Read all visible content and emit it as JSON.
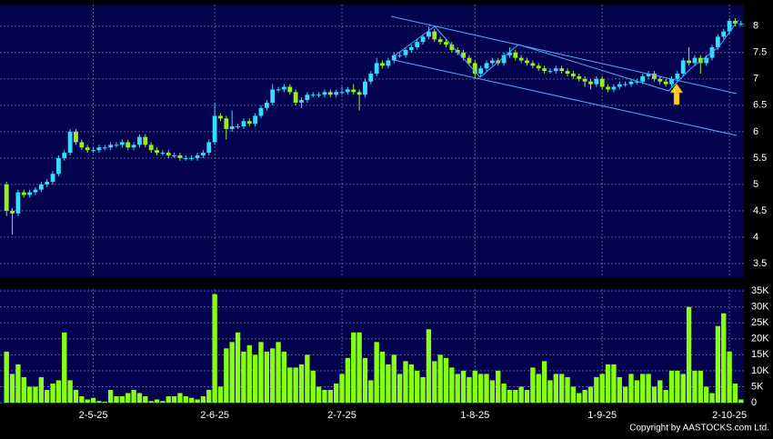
{
  "chart_data": {
    "type": "candlestick",
    "categories": [
      null,
      null,
      null,
      null,
      null,
      null,
      null,
      null,
      null,
      null,
      null,
      null,
      null,
      null,
      null,
      "2-5-25",
      null,
      null,
      null,
      null,
      null,
      null,
      null,
      null,
      null,
      null,
      null,
      null,
      null,
      null,
      null,
      null,
      null,
      null,
      null,
      null,
      "2-6-25",
      null,
      null,
      null,
      null,
      null,
      null,
      null,
      null,
      null,
      null,
      null,
      null,
      null,
      null,
      null,
      null,
      null,
      null,
      null,
      null,
      null,
      "2-7-25",
      null,
      null,
      null,
      null,
      null,
      null,
      null,
      null,
      null,
      null,
      null,
      null,
      null,
      null,
      null,
      null,
      null,
      null,
      null,
      null,
      null,
      null,
      "1-8-25",
      null,
      null,
      null,
      null,
      null,
      null,
      null,
      null,
      null,
      null,
      null,
      null,
      null,
      null,
      null,
      null,
      null,
      null,
      null,
      null,
      null,
      "1-9-25",
      null,
      null,
      null,
      null,
      null,
      null,
      null,
      null,
      null,
      null,
      null,
      null,
      null,
      null,
      null,
      null,
      null,
      null,
      null,
      null,
      null,
      "2-10-25",
      null,
      null
    ],
    "ohlc": [
      [
        5.0,
        5.05,
        4.4,
        4.5
      ],
      [
        4.5,
        4.55,
        4.05,
        4.45
      ],
      [
        4.45,
        4.9,
        4.4,
        4.85
      ],
      [
        4.85,
        4.9,
        4.75,
        4.8
      ],
      [
        4.8,
        4.9,
        4.75,
        4.85
      ],
      [
        4.85,
        4.95,
        4.8,
        4.9
      ],
      [
        4.9,
        5.05,
        4.85,
        5.0
      ],
      [
        5.0,
        5.1,
        4.95,
        5.05
      ],
      [
        5.05,
        5.25,
        5.0,
        5.2
      ],
      [
        5.2,
        5.55,
        5.15,
        5.5
      ],
      [
        5.5,
        5.65,
        5.45,
        5.6
      ],
      [
        5.6,
        6.05,
        5.55,
        6.0
      ],
      [
        6.0,
        6.05,
        5.75,
        5.8
      ],
      [
        5.8,
        5.85,
        5.65,
        5.7
      ],
      [
        5.7,
        5.75,
        5.6,
        5.65
      ],
      [
        5.65,
        5.7,
        5.6,
        5.65
      ],
      [
        5.65,
        5.75,
        5.6,
        5.7
      ],
      [
        5.7,
        5.75,
        5.65,
        5.7
      ],
      [
        5.7,
        5.8,
        5.65,
        5.75
      ],
      [
        5.75,
        5.8,
        5.7,
        5.75
      ],
      [
        5.75,
        5.85,
        5.7,
        5.8
      ],
      [
        5.8,
        5.85,
        5.65,
        5.7
      ],
      [
        5.7,
        5.8,
        5.65,
        5.75
      ],
      [
        5.75,
        5.95,
        5.7,
        5.9
      ],
      [
        5.9,
        5.95,
        5.7,
        5.75
      ],
      [
        5.75,
        5.8,
        5.6,
        5.65
      ],
      [
        5.65,
        5.7,
        5.55,
        5.6
      ],
      [
        5.6,
        5.65,
        5.55,
        5.6
      ],
      [
        5.6,
        5.65,
        5.5,
        5.55
      ],
      [
        5.55,
        5.6,
        5.5,
        5.55
      ],
      [
        5.55,
        5.6,
        5.45,
        5.5
      ],
      [
        5.5,
        5.55,
        5.45,
        5.5
      ],
      [
        5.5,
        5.55,
        5.45,
        5.5
      ],
      [
        5.5,
        5.6,
        5.45,
        5.55
      ],
      [
        5.55,
        5.65,
        5.5,
        5.6
      ],
      [
        5.6,
        5.85,
        5.55,
        5.8
      ],
      [
        5.8,
        6.55,
        5.75,
        6.3
      ],
      [
        6.3,
        6.35,
        6.2,
        6.25
      ],
      [
        6.25,
        6.3,
        5.85,
        6.05
      ],
      [
        6.05,
        6.4,
        6.0,
        6.1
      ],
      [
        6.1,
        6.15,
        6.05,
        6.1
      ],
      [
        6.1,
        6.25,
        6.05,
        6.2
      ],
      [
        6.2,
        6.25,
        6.1,
        6.15
      ],
      [
        6.15,
        6.35,
        6.1,
        6.3
      ],
      [
        6.3,
        6.5,
        6.25,
        6.45
      ],
      [
        6.45,
        6.6,
        6.4,
        6.55
      ],
      [
        6.55,
        6.9,
        6.5,
        6.8
      ],
      [
        6.8,
        6.85,
        6.75,
        6.8
      ],
      [
        6.8,
        6.9,
        6.75,
        6.85
      ],
      [
        6.85,
        6.9,
        6.7,
        6.75
      ],
      [
        6.75,
        6.8,
        6.5,
        6.55
      ],
      [
        6.55,
        6.65,
        6.45,
        6.6
      ],
      [
        6.6,
        6.75,
        6.55,
        6.7
      ],
      [
        6.7,
        6.75,
        6.65,
        6.7
      ],
      [
        6.7,
        6.75,
        6.65,
        6.7
      ],
      [
        6.7,
        6.8,
        6.65,
        6.75
      ],
      [
        6.75,
        6.8,
        6.65,
        6.7
      ],
      [
        6.7,
        6.8,
        6.65,
        6.75
      ],
      [
        6.75,
        6.85,
        6.7,
        6.75
      ],
      [
        6.75,
        6.85,
        6.7,
        6.8
      ],
      [
        6.8,
        6.9,
        6.7,
        6.75
      ],
      [
        6.75,
        6.8,
        6.4,
        6.7
      ],
      [
        6.7,
        7.0,
        6.65,
        6.95
      ],
      [
        6.95,
        7.15,
        6.9,
        7.1
      ],
      [
        7.1,
        7.4,
        7.05,
        7.3
      ],
      [
        7.3,
        7.35,
        7.2,
        7.25
      ],
      [
        7.25,
        7.4,
        7.2,
        7.35
      ],
      [
        7.35,
        7.5,
        7.3,
        7.45
      ],
      [
        7.45,
        7.5,
        7.4,
        7.45
      ],
      [
        7.45,
        7.6,
        7.4,
        7.55
      ],
      [
        7.55,
        7.65,
        7.5,
        7.6
      ],
      [
        7.6,
        7.75,
        7.55,
        7.7
      ],
      [
        7.7,
        7.85,
        7.65,
        7.8
      ],
      [
        7.8,
        8.0,
        7.75,
        7.9
      ],
      [
        7.9,
        7.95,
        7.7,
        7.75
      ],
      [
        7.75,
        7.8,
        7.65,
        7.7
      ],
      [
        7.7,
        7.75,
        7.6,
        7.65
      ],
      [
        7.65,
        7.7,
        7.5,
        7.55
      ],
      [
        7.55,
        7.6,
        7.45,
        7.5
      ],
      [
        7.5,
        7.55,
        7.35,
        7.4
      ],
      [
        7.4,
        7.45,
        7.25,
        7.3
      ],
      [
        7.3,
        7.35,
        7.0,
        7.1
      ],
      [
        7.1,
        7.25,
        7.05,
        7.2
      ],
      [
        7.2,
        7.35,
        7.15,
        7.3
      ],
      [
        7.3,
        7.4,
        7.25,
        7.35
      ],
      [
        7.35,
        7.4,
        7.25,
        7.3
      ],
      [
        7.3,
        7.5,
        7.25,
        7.45
      ],
      [
        7.45,
        7.6,
        7.4,
        7.5
      ],
      [
        7.5,
        7.55,
        7.35,
        7.4
      ],
      [
        7.4,
        7.45,
        7.3,
        7.35
      ],
      [
        7.35,
        7.4,
        7.25,
        7.3
      ],
      [
        7.3,
        7.35,
        7.2,
        7.25
      ],
      [
        7.25,
        7.3,
        7.15,
        7.2
      ],
      [
        7.2,
        7.25,
        7.1,
        7.15
      ],
      [
        7.15,
        7.2,
        7.1,
        7.15
      ],
      [
        7.15,
        7.25,
        7.1,
        7.2
      ],
      [
        7.2,
        7.25,
        7.1,
        7.15
      ],
      [
        7.15,
        7.2,
        7.05,
        7.1
      ],
      [
        7.1,
        7.15,
        7.0,
        7.05
      ],
      [
        7.05,
        7.1,
        6.95,
        7.0
      ],
      [
        7.0,
        7.05,
        6.85,
        6.95
      ],
      [
        6.95,
        7.0,
        6.8,
        6.9
      ],
      [
        6.9,
        7.05,
        6.85,
        7.0
      ],
      [
        7.0,
        7.05,
        6.8,
        6.85
      ],
      [
        6.85,
        6.9,
        6.75,
        6.8
      ],
      [
        6.8,
        6.9,
        6.75,
        6.85
      ],
      [
        6.85,
        6.95,
        6.8,
        6.9
      ],
      [
        6.9,
        6.95,
        6.85,
        6.9
      ],
      [
        6.9,
        7.0,
        6.85,
        6.95
      ],
      [
        6.95,
        7.0,
        6.9,
        6.95
      ],
      [
        6.95,
        7.1,
        6.9,
        7.05
      ],
      [
        7.05,
        7.15,
        7.0,
        7.1
      ],
      [
        7.1,
        7.15,
        6.95,
        7.0
      ],
      [
        7.0,
        7.05,
        6.9,
        6.95
      ],
      [
        6.95,
        7.0,
        6.85,
        6.9
      ],
      [
        6.9,
        7.05,
        6.85,
        7.0
      ],
      [
        7.0,
        7.15,
        6.95,
        7.1
      ],
      [
        7.1,
        7.4,
        7.05,
        7.35
      ],
      [
        7.35,
        7.6,
        7.25,
        7.3
      ],
      [
        7.3,
        7.45,
        7.25,
        7.4
      ],
      [
        7.4,
        7.45,
        7.1,
        7.3
      ],
      [
        7.3,
        7.45,
        7.25,
        7.4
      ],
      [
        7.4,
        7.65,
        7.35,
        7.6
      ],
      [
        7.6,
        7.85,
        7.55,
        7.8
      ],
      [
        7.8,
        7.95,
        7.75,
        7.9
      ],
      [
        7.9,
        8.15,
        7.85,
        8.1
      ],
      [
        8.1,
        8.15,
        8.0,
        8.05
      ],
      [
        8.05,
        8.1,
        8.0,
        8.05
      ]
    ],
    "up_color": "#33ddff",
    "down_color": "#99ee22",
    "ylim": [
      3.24,
      8.41
    ],
    "yticks": [
      3.5,
      4,
      4.5,
      5,
      5.5,
      6,
      6.5,
      7,
      7.5,
      8
    ],
    "grid": true,
    "volume": {
      "color": "#88ff11",
      "ylim": [
        0,
        35600
      ],
      "yticks": [
        0,
        {
          "value": 5000,
          "label": "5K"
        },
        {
          "value": 10000,
          "label": "10K"
        },
        {
          "value": 15000,
          "label": "15K"
        },
        {
          "value": 20000,
          "label": "20K"
        },
        {
          "value": 25000,
          "label": "25K"
        },
        {
          "value": 30000,
          "label": "30K"
        },
        {
          "value": 35000,
          "label": "35K"
        }
      ],
      "values": [
        16000,
        9000,
        12000,
        8000,
        5000,
        5000,
        8000,
        4000,
        6000,
        7000,
        22000,
        7000,
        4000,
        2000,
        1000,
        1500,
        500,
        300,
        4000,
        2000,
        2000,
        3000,
        4000,
        3000,
        2000,
        500,
        1000,
        500,
        2000,
        2000,
        3000,
        2000,
        1500,
        1000,
        2000,
        4000,
        34000,
        5000,
        17000,
        19000,
        22000,
        16000,
        18000,
        15000,
        19000,
        16000,
        17000,
        19000,
        16000,
        11000,
        11000,
        12000,
        15000,
        10000,
        5000,
        4000,
        4000,
        6000,
        9000,
        14000,
        22000,
        22000,
        14000,
        7000,
        19000,
        16000,
        12000,
        15000,
        9000,
        13000,
        12000,
        10000,
        8000,
        23000,
        13000,
        15000,
        14000,
        11000,
        9000,
        10000,
        8000,
        10000,
        9000,
        9000,
        7000,
        10000,
        6000,
        4000,
        4000,
        5000,
        4000,
        11000,
        9000,
        13000,
        7000,
        9000,
        9000,
        8000,
        5000,
        3000,
        4000,
        5000,
        8000,
        9000,
        12000,
        12000,
        8000,
        5000,
        9000,
        7000,
        9000,
        9000,
        5000,
        7000,
        4000,
        10000,
        10000,
        9000,
        30000,
        10000,
        10000,
        5000,
        3000,
        24000,
        28000,
        16000,
        6000,
        1000
      ]
    }
  },
  "copyright": "Copyright by AASTOCKS.com Ltd."
}
